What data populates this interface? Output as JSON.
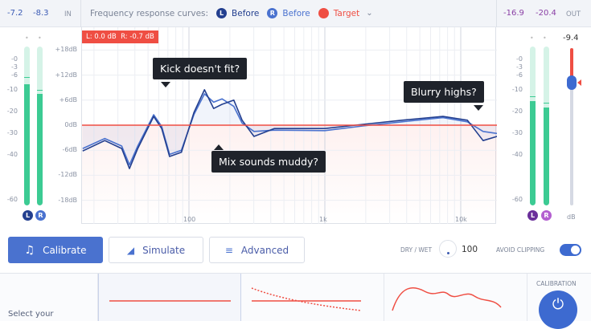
{
  "input": {
    "left": "-7.2",
    "right": "-8.3",
    "label": "IN"
  },
  "output": {
    "left": "-16.9",
    "right": "-20.4",
    "label": "OUT"
  },
  "legend": {
    "title": "Frequency response curves:",
    "items": [
      {
        "badge": "L",
        "label": "Before",
        "color": "#233f8f"
      },
      {
        "badge": "R",
        "label": "Before",
        "color": "#4a72cf"
      },
      {
        "badge": "",
        "label": "Target",
        "color": "#ef4e43"
      }
    ]
  },
  "readout": "L: 0.0 dB  R: -0.7 dB",
  "meter_scale": [
    "-0",
    "-3",
    "-6",
    "-10",
    "-20",
    "-30",
    "-40",
    "-60"
  ],
  "db_scale": [
    "+18dB",
    "+12dB",
    "+6dB",
    "0dB",
    "-6dB",
    "-12dB",
    "-18dB"
  ],
  "freq_labels": [
    "100",
    "1k",
    "10k"
  ],
  "in_meters": {
    "left_level_db": -8.5,
    "right_level_db": -12,
    "left_peak_db": -6.5,
    "right_peak_db": -10,
    "left_badge": "L",
    "right_badge": "R"
  },
  "out_meters": {
    "left_level_db": -15,
    "right_level_db": -18,
    "left_peak_db": -13,
    "right_peak_db": -16,
    "left_badge": "L",
    "right_badge": "R"
  },
  "fader": {
    "value": "-9.4",
    "unit": "dB"
  },
  "annotations": [
    "Kick doesn't fit?",
    "Mix sounds muddy?",
    "Blurry highs?"
  ],
  "chart_data": {
    "type": "line",
    "xscale": "log",
    "xlim": [
      16.5,
      18500
    ],
    "ylim": [
      -20,
      20
    ],
    "target_db": 0,
    "series": [
      {
        "name": "L Before",
        "color": "#233f8f",
        "points": [
          [
            16.5,
            -6.2
          ],
          [
            24,
            -3.7
          ],
          [
            32,
            -5.6
          ],
          [
            36.5,
            -10.4
          ],
          [
            42,
            -5.6
          ],
          [
            55,
            2.1
          ],
          [
            63,
            -0.8
          ],
          [
            72,
            -7.5
          ],
          [
            88,
            -6.5
          ],
          [
            109,
            3.1
          ],
          [
            130,
            8.5
          ],
          [
            152,
            4
          ],
          [
            175,
            5
          ],
          [
            214,
            6
          ],
          [
            246,
            1.2
          ],
          [
            301,
            -2.7
          ],
          [
            424,
            -0.8
          ],
          [
            1000,
            -0.8
          ],
          [
            1900,
            0.2
          ],
          [
            3700,
            1.2
          ],
          [
            7400,
            2.1
          ],
          [
            11200,
            1.2
          ],
          [
            14600,
            -3.7
          ],
          [
            18500,
            -2.7
          ]
        ]
      },
      {
        "name": "R Before",
        "color": "#4a72cf",
        "points": [
          [
            16.5,
            -5.6
          ],
          [
            24,
            -3.2
          ],
          [
            32,
            -5
          ],
          [
            36.5,
            -9.5
          ],
          [
            42,
            -5
          ],
          [
            55,
            2.5
          ],
          [
            63,
            -0.3
          ],
          [
            72,
            -7
          ],
          [
            88,
            -6
          ],
          [
            109,
            2.6
          ],
          [
            130,
            7.5
          ],
          [
            152,
            5.5
          ],
          [
            175,
            6.3
          ],
          [
            214,
            4.5
          ],
          [
            246,
            0.5
          ],
          [
            301,
            -1.5
          ],
          [
            424,
            -1.2
          ],
          [
            1000,
            -1.3
          ],
          [
            1900,
            -0.2
          ],
          [
            3700,
            0.8
          ],
          [
            7400,
            1.8
          ],
          [
            11200,
            0.8
          ],
          [
            14600,
            -1.5
          ],
          [
            18500,
            -2
          ]
        ]
      }
    ]
  },
  "buttons": {
    "calibrate": "Calibrate",
    "simulate": "Simulate",
    "advanced": "Advanced"
  },
  "drywet": {
    "label": "DRY / WET",
    "value": "100"
  },
  "avoid_clipping": {
    "label": "AVOID CLIPPING",
    "on": true
  },
  "bottom": {
    "select_label": "Select your",
    "calibration_label": "CALIBRATION"
  }
}
